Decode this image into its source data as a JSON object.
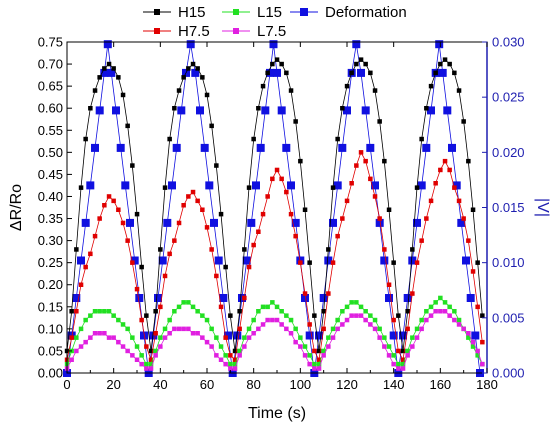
{
  "chart_data": {
    "type": "scatter",
    "xlabel": "Time (s)",
    "ylabel": "ΔR/Ro",
    "y2label": "|V|",
    "xlim": [
      0,
      180
    ],
    "ylim": [
      0,
      0.75
    ],
    "y2lim": [
      0,
      0.03
    ],
    "x_ticks": [
      "0",
      "20",
      "40",
      "60",
      "80",
      "100",
      "120",
      "140",
      "160",
      "180"
    ],
    "y_ticks": [
      "0.00",
      "0.05",
      "0.10",
      "0.15",
      "0.20",
      "0.25",
      "0.30",
      "0.35",
      "0.40",
      "0.45",
      "0.50",
      "0.55",
      "0.60",
      "0.65",
      "0.70",
      "0.75"
    ],
    "y2_ticks": [
      "0.000",
      "0.005",
      "0.010",
      "0.015",
      "0.020",
      "0.025",
      "0.030"
    ],
    "legend_position": "top",
    "series": [
      {
        "name": "H15",
        "axis": "left",
        "color": "#000000",
        "marker": "square",
        "x": [
          0,
          2,
          4,
          6,
          8,
          10,
          12,
          14,
          16,
          18,
          20,
          22,
          24,
          26,
          28,
          30,
          32,
          34,
          36,
          38,
          40,
          42,
          44,
          46,
          48,
          50,
          52,
          54,
          56,
          58,
          60,
          62,
          64,
          66,
          68,
          70,
          72,
          74,
          76,
          78,
          80,
          82,
          84,
          86,
          88,
          90,
          92,
          94,
          96,
          98,
          100,
          102,
          104,
          106,
          108,
          110,
          112,
          114,
          116,
          118,
          120,
          122,
          124,
          126,
          128,
          130,
          132,
          134,
          136,
          138,
          140,
          142,
          144,
          146,
          148,
          150,
          152,
          154,
          156,
          158,
          160,
          162,
          164,
          166,
          168,
          170,
          172,
          174,
          176,
          178
        ],
        "y": [
          0.05,
          0.14,
          0.28,
          0.42,
          0.53,
          0.6,
          0.64,
          0.67,
          0.69,
          0.7,
          0.69,
          0.67,
          0.63,
          0.56,
          0.47,
          0.36,
          0.24,
          0.13,
          0.05,
          0.14,
          0.28,
          0.42,
          0.53,
          0.6,
          0.64,
          0.67,
          0.69,
          0.7,
          0.69,
          0.67,
          0.63,
          0.56,
          0.47,
          0.36,
          0.24,
          0.13,
          0.05,
          0.14,
          0.28,
          0.42,
          0.53,
          0.6,
          0.65,
          0.68,
          0.7,
          0.71,
          0.7,
          0.68,
          0.64,
          0.57,
          0.48,
          0.37,
          0.25,
          0.13,
          0.05,
          0.14,
          0.28,
          0.42,
          0.53,
          0.6,
          0.65,
          0.68,
          0.7,
          0.71,
          0.7,
          0.68,
          0.64,
          0.57,
          0.48,
          0.37,
          0.25,
          0.13,
          0.05,
          0.14,
          0.28,
          0.42,
          0.53,
          0.6,
          0.65,
          0.68,
          0.7,
          0.71,
          0.7,
          0.68,
          0.64,
          0.57,
          0.48,
          0.37,
          0.25,
          0.13
        ]
      },
      {
        "name": "H7.5",
        "axis": "left",
        "color": "#e00000",
        "marker": "square",
        "x": [
          0,
          2,
          4,
          6,
          8,
          10,
          12,
          14,
          16,
          18,
          20,
          22,
          24,
          26,
          28,
          30,
          32,
          34,
          36,
          38,
          40,
          42,
          44,
          46,
          48,
          50,
          52,
          54,
          56,
          58,
          60,
          62,
          64,
          66,
          68,
          70,
          72,
          74,
          76,
          78,
          80,
          82,
          84,
          86,
          88,
          90,
          92,
          94,
          96,
          98,
          100,
          102,
          104,
          106,
          108,
          110,
          112,
          114,
          116,
          118,
          120,
          122,
          124,
          126,
          128,
          130,
          132,
          134,
          136,
          138,
          140,
          142,
          144,
          146,
          148,
          150,
          152,
          154,
          156,
          158,
          160,
          162,
          164,
          166,
          168,
          170,
          172,
          174,
          176,
          178
        ],
        "y": [
          0.03,
          0.08,
          0.14,
          0.2,
          0.24,
          0.27,
          0.31,
          0.35,
          0.38,
          0.4,
          0.39,
          0.37,
          0.34,
          0.3,
          0.25,
          0.19,
          0.12,
          0.06,
          0.03,
          0.09,
          0.15,
          0.22,
          0.27,
          0.3,
          0.34,
          0.38,
          0.4,
          0.41,
          0.39,
          0.37,
          0.33,
          0.28,
          0.22,
          0.15,
          0.08,
          0.04,
          0.03,
          0.1,
          0.17,
          0.24,
          0.29,
          0.32,
          0.36,
          0.4,
          0.44,
          0.46,
          0.44,
          0.41,
          0.36,
          0.31,
          0.25,
          0.18,
          0.11,
          0.05,
          0.03,
          0.1,
          0.18,
          0.25,
          0.31,
          0.35,
          0.39,
          0.43,
          0.47,
          0.5,
          0.48,
          0.44,
          0.4,
          0.35,
          0.28,
          0.2,
          0.12,
          0.05,
          0.03,
          0.1,
          0.18,
          0.25,
          0.3,
          0.35,
          0.39,
          0.43,
          0.46,
          0.48,
          0.46,
          0.42,
          0.39,
          0.35,
          0.3,
          0.23,
          0.15,
          0.07
        ]
      },
      {
        "name": "L15",
        "axis": "left",
        "color": "#22e022",
        "marker": "square",
        "x": [
          0,
          2,
          4,
          6,
          8,
          10,
          12,
          14,
          16,
          18,
          20,
          22,
          24,
          26,
          28,
          30,
          32,
          34,
          36,
          38,
          40,
          42,
          44,
          46,
          48,
          50,
          52,
          54,
          56,
          58,
          60,
          62,
          64,
          66,
          68,
          70,
          72,
          74,
          76,
          78,
          80,
          82,
          84,
          86,
          88,
          90,
          92,
          94,
          96,
          98,
          100,
          102,
          104,
          106,
          108,
          110,
          112,
          114,
          116,
          118,
          120,
          122,
          124,
          126,
          128,
          130,
          132,
          134,
          136,
          138,
          140,
          142,
          144,
          146,
          148,
          150,
          152,
          154,
          156,
          158,
          160,
          162,
          164,
          166,
          168,
          170,
          172,
          174,
          176,
          178
        ],
        "y": [
          0.02,
          0.05,
          0.08,
          0.1,
          0.12,
          0.13,
          0.14,
          0.14,
          0.14,
          0.14,
          0.13,
          0.12,
          0.11,
          0.1,
          0.08,
          0.06,
          0.04,
          0.02,
          0.02,
          0.05,
          0.08,
          0.1,
          0.12,
          0.14,
          0.15,
          0.16,
          0.16,
          0.15,
          0.14,
          0.13,
          0.12,
          0.1,
          0.08,
          0.06,
          0.04,
          0.02,
          0.02,
          0.05,
          0.08,
          0.1,
          0.12,
          0.14,
          0.15,
          0.15,
          0.16,
          0.15,
          0.14,
          0.13,
          0.12,
          0.1,
          0.08,
          0.06,
          0.04,
          0.02,
          0.02,
          0.05,
          0.08,
          0.1,
          0.12,
          0.14,
          0.15,
          0.16,
          0.16,
          0.15,
          0.14,
          0.13,
          0.12,
          0.1,
          0.08,
          0.06,
          0.04,
          0.02,
          0.02,
          0.05,
          0.08,
          0.1,
          0.12,
          0.14,
          0.15,
          0.16,
          0.17,
          0.16,
          0.15,
          0.14,
          0.12,
          0.1,
          0.08,
          0.06,
          0.04,
          0.02
        ]
      },
      {
        "name": "L7.5",
        "axis": "left",
        "color": "#e020e0",
        "marker": "square",
        "x": [
          0,
          2,
          4,
          6,
          8,
          10,
          12,
          14,
          16,
          18,
          20,
          22,
          24,
          26,
          28,
          30,
          32,
          34,
          36,
          38,
          40,
          42,
          44,
          46,
          48,
          50,
          52,
          54,
          56,
          58,
          60,
          62,
          64,
          66,
          68,
          70,
          72,
          74,
          76,
          78,
          80,
          82,
          84,
          86,
          88,
          90,
          92,
          94,
          96,
          98,
          100,
          102,
          104,
          106,
          108,
          110,
          112,
          114,
          116,
          118,
          120,
          122,
          124,
          126,
          128,
          130,
          132,
          134,
          136,
          138,
          140,
          142,
          144,
          146,
          148,
          150,
          152,
          154,
          156,
          158,
          160,
          162,
          164,
          166,
          168,
          170,
          172,
          174,
          176,
          178
        ],
        "y": [
          0.01,
          0.03,
          0.05,
          0.06,
          0.07,
          0.08,
          0.09,
          0.09,
          0.09,
          0.08,
          0.08,
          0.07,
          0.06,
          0.05,
          0.04,
          0.03,
          0.02,
          0.01,
          0.01,
          0.04,
          0.06,
          0.08,
          0.09,
          0.1,
          0.1,
          0.1,
          0.1,
          0.09,
          0.09,
          0.08,
          0.07,
          0.06,
          0.04,
          0.03,
          0.02,
          0.01,
          0.01,
          0.04,
          0.06,
          0.08,
          0.09,
          0.1,
          0.11,
          0.12,
          0.12,
          0.12,
          0.11,
          0.1,
          0.09,
          0.07,
          0.06,
          0.04,
          0.02,
          0.01,
          0.01,
          0.04,
          0.06,
          0.08,
          0.1,
          0.11,
          0.12,
          0.13,
          0.13,
          0.13,
          0.12,
          0.11,
          0.1,
          0.08,
          0.06,
          0.04,
          0.02,
          0.01,
          0.01,
          0.04,
          0.06,
          0.08,
          0.1,
          0.12,
          0.13,
          0.14,
          0.14,
          0.14,
          0.13,
          0.12,
          0.11,
          0.1,
          0.09,
          0.07,
          0.05,
          0.02
        ]
      },
      {
        "name": "Deformation",
        "axis": "right",
        "color": "#1010e0",
        "marker": "square",
        "x": [
          0,
          2,
          4,
          6,
          8,
          10,
          12,
          14,
          16,
          17.5,
          19,
          21,
          23,
          25,
          27,
          29,
          31,
          33,
          35,
          37,
          39,
          41,
          43,
          45,
          47,
          49,
          51,
          53,
          55,
          57,
          59,
          61,
          63,
          65,
          67,
          69,
          71,
          73,
          75,
          77,
          79,
          81,
          83,
          85,
          87,
          88.5,
          90,
          92,
          94,
          96,
          98,
          100,
          102,
          104,
          106,
          108,
          110,
          112,
          114,
          116,
          118,
          120,
          122,
          124,
          126,
          128,
          130,
          132,
          134,
          136,
          138,
          140,
          142,
          144,
          146,
          148,
          150,
          152,
          154,
          156,
          158,
          159.5,
          161,
          163,
          165,
          167,
          169,
          171,
          173,
          175,
          177
        ],
        "y": [
          0.0,
          0.0034,
          0.0068,
          0.0102,
          0.0136,
          0.017,
          0.0204,
          0.0238,
          0.0272,
          0.0298,
          0.0272,
          0.0238,
          0.0204,
          0.017,
          0.0136,
          0.0102,
          0.0068,
          0.0034,
          0.0,
          0.0034,
          0.0068,
          0.0102,
          0.0136,
          0.017,
          0.0204,
          0.0238,
          0.0272,
          0.0298,
          0.0272,
          0.0238,
          0.0204,
          0.017,
          0.0136,
          0.0102,
          0.0068,
          0.0034,
          0.0,
          0.0034,
          0.0068,
          0.0102,
          0.0136,
          0.017,
          0.0204,
          0.0238,
          0.0272,
          0.0298,
          0.0272,
          0.0238,
          0.0204,
          0.017,
          0.0136,
          0.0102,
          0.0068,
          0.0034,
          0.0,
          0.0034,
          0.0068,
          0.0102,
          0.0136,
          0.017,
          0.0204,
          0.0238,
          0.0272,
          0.0298,
          0.0272,
          0.0238,
          0.0204,
          0.017,
          0.0136,
          0.0102,
          0.0068,
          0.0034,
          0.0,
          0.0034,
          0.0068,
          0.0102,
          0.0136,
          0.017,
          0.0204,
          0.0238,
          0.0272,
          0.0298,
          0.0272,
          0.0238,
          0.0204,
          0.017,
          0.0136,
          0.0102,
          0.0068,
          0.0034,
          0.0
        ]
      }
    ]
  }
}
